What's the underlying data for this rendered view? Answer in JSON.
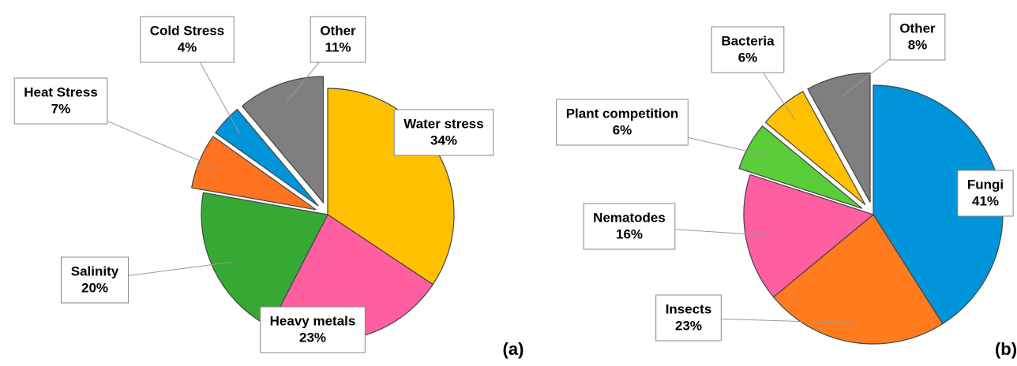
{
  "chart_data": [
    {
      "type": "pie",
      "panel_label": "(a)",
      "categories": [
        "Water stress",
        "Heavy metals",
        "Salinity",
        "Heat Stress",
        "Cold Stress",
        "Other"
      ],
      "values": [
        34,
        23,
        20,
        7,
        4,
        11
      ],
      "value_labels": [
        "34%",
        "23%",
        "20%",
        "7%",
        "4%",
        "11%"
      ],
      "colors": [
        "#FFC000",
        "#FF5FA0",
        "#36A935",
        "#FF7320",
        "#0094DA",
        "#7F7F7F"
      ],
      "explode": [
        false,
        false,
        false,
        true,
        true,
        true
      ]
    },
    {
      "type": "pie",
      "panel_label": "(b)",
      "categories": [
        "Fungi",
        "Insects",
        "Nematodes",
        "Plant competition",
        "Bacteria",
        "Other"
      ],
      "values": [
        41,
        23,
        16,
        6,
        6,
        8
      ],
      "value_labels": [
        "41%",
        "23%",
        "16%",
        "6%",
        "6%",
        "8%"
      ],
      "colors": [
        "#0094DA",
        "#FF7B1E",
        "#FF5FA0",
        "#5ACD3A",
        "#FFC000",
        "#7F7F7F"
      ],
      "explode": [
        false,
        false,
        false,
        true,
        true,
        true
      ]
    }
  ]
}
